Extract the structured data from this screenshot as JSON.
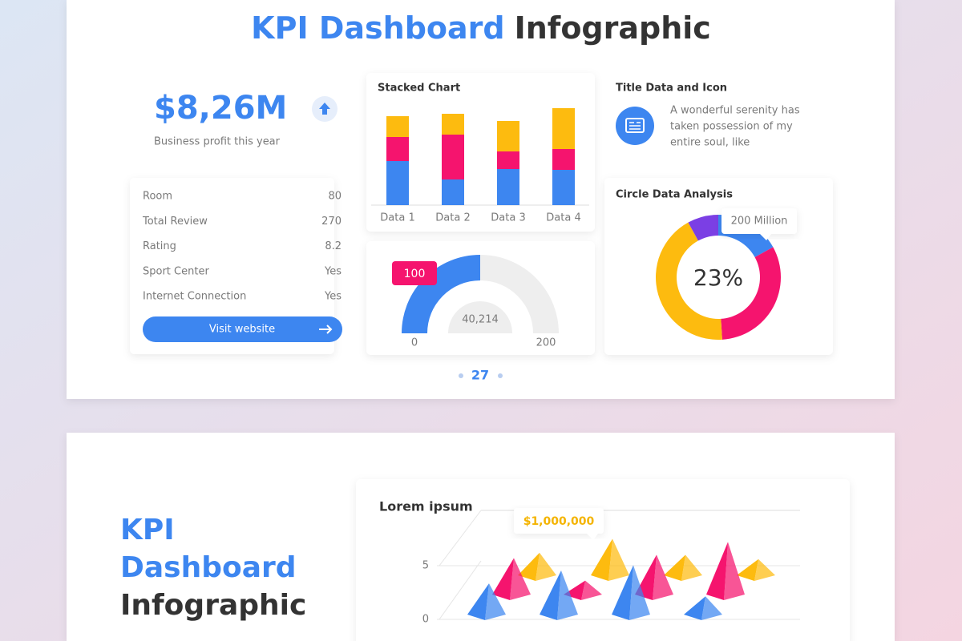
{
  "slide1": {
    "title_accent": "KPI Dashboard",
    "title_rest": "Infographic",
    "page_number": "27"
  },
  "kpi": {
    "value": "$8,26M",
    "caption": "Business profit this year"
  },
  "details": {
    "rows": [
      [
        "Room",
        "80"
      ],
      [
        "Total Review",
        "270"
      ],
      [
        "Rating",
        "8.2"
      ],
      [
        "Sport Center",
        "Yes"
      ],
      [
        "Internet Connection",
        "Yes"
      ]
    ],
    "button": "Visit website"
  },
  "info": {
    "heading": "Title Data and Icon",
    "lines": [
      "A wonderful serenity has",
      "taken possession of my",
      "entire soul, like"
    ]
  },
  "slide2": {
    "title_lines": [
      "KPI",
      "Dashboard",
      "Infographic"
    ]
  },
  "chart_data": [
    {
      "type": "bar",
      "stacked": true,
      "title": "Stacked Chart",
      "categories": [
        "Data 1",
        "Data 2",
        "Data 3",
        "Data 4"
      ],
      "ylim": [
        0,
        125
      ],
      "series": [
        {
          "color": "#3d86f0",
          "values": [
            55,
            32,
            45,
            44
          ]
        },
        {
          "color": "#f5146e",
          "values": [
            30,
            56,
            22,
            26
          ]
        },
        {
          "color": "#fdbb0f",
          "values": [
            26,
            26,
            38,
            51
          ]
        }
      ]
    },
    {
      "type": "gauge",
      "value": 100,
      "xlim": [
        0,
        200
      ],
      "xticks": [
        0,
        200
      ],
      "color": "#3d86f0",
      "track_color": "#eeeeee",
      "value_color": "#f5146e",
      "center_text": "40,214"
    },
    {
      "type": "donut",
      "title": "Circle Data Analysis",
      "center_text": "23%",
      "callout": "200 Million",
      "values": [
        17,
        32,
        43,
        8
      ],
      "colors": [
        "#3d86f0",
        "#f5146e",
        "#fdbb0f",
        "#7b3fe4"
      ]
    },
    {
      "type": "pyramid",
      "title": "Lorem ipsum",
      "ylim": [
        0,
        10
      ],
      "yticks": [
        0,
        5
      ],
      "callout": "$1,000,000",
      "series": [
        {
          "color": "#fdbb0f",
          "values": [
            2.1,
            3.4,
            1.9,
            1.5
          ]
        },
        {
          "color": "#f5146e",
          "values": [
            3.4,
            1.3,
            3.7,
            4.9
          ]
        },
        {
          "color": "#3d86f0",
          "values": [
            2.9,
            4.1,
            4.6,
            1.7
          ]
        }
      ]
    }
  ]
}
